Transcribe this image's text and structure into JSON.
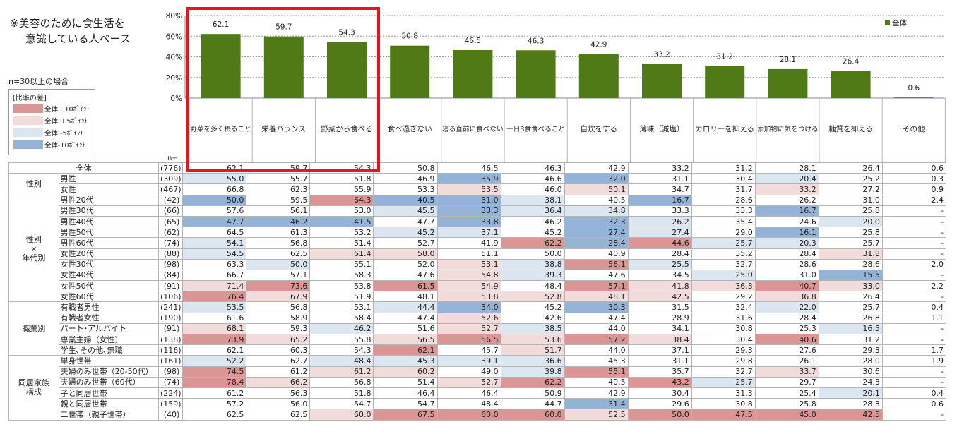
{
  "note": [
    "※美容のために食生活を",
    "意識している人ベース"
  ],
  "n_condition": "n=30以上の場合",
  "legend": {
    "title": "[比率の差]",
    "items": [
      {
        "label": "全体＋10ﾎﾟｲﾝﾄ",
        "color": "#da9694"
      },
      {
        "label": "全体 ＋5ﾎﾟｲﾝﾄ",
        "color": "#f2dcdb"
      },
      {
        "label": "全体 -5ﾎﾟｲﾝﾄ",
        "color": "#dce6f1"
      },
      {
        "label": "全体-10ﾎﾟｲﾝﾄ",
        "color": "#95b3d7"
      }
    ]
  },
  "n_label": "n=",
  "colors": {
    "bar": "#4f7a15",
    "up10": "#da9694",
    "up5": "#f2dcdb",
    "dn5": "#dce6f1",
    "dn10": "#95b3d7",
    "highlight": "#e8141b"
  },
  "chart_data": {
    "type": "bar",
    "categories": [
      "野菜を多く摂ること",
      "栄養バランス",
      "野菜から食べる",
      "食べ過ぎない",
      "寝る直前に食べない",
      "一日3食食べること",
      "自炊をする",
      "薄味（減塩）",
      "カロリーを抑える",
      "添加物に気をつける",
      "糖質を抑える",
      "その他"
    ],
    "series": [
      {
        "name": "全体",
        "values": [
          62.1,
          59.7,
          54.3,
          50.8,
          46.5,
          46.3,
          42.9,
          33.2,
          31.2,
          28.1,
          26.4,
          0.6
        ]
      }
    ],
    "yticks": [
      "80%",
      "60%",
      "40%",
      "20%",
      "0%"
    ],
    "ylim": [
      0,
      80
    ],
    "legend_position": "top-right",
    "highlighted_categories": [
      "野菜を多く摂ること",
      "栄養バランス",
      "野菜から食べる"
    ]
  },
  "table": {
    "rows": [
      {
        "group": "",
        "label": "全体",
        "n": "(776)",
        "values": [
          "62.1",
          "59.7",
          "54.3",
          "50.8",
          "46.5",
          "46.3",
          "42.9",
          "33.2",
          "31.2",
          "28.1",
          "26.4",
          "0.6"
        ]
      },
      {
        "group": "性別",
        "label": "男性",
        "n": "(309)",
        "values": [
          "55.0",
          "55.7",
          "51.8",
          "46.9",
          "35.9",
          "46.6",
          "32.0",
          "31.1",
          "30.4",
          "20.4",
          "25.2",
          "0.3"
        ]
      },
      {
        "group": "",
        "label": "女性",
        "n": "(467)",
        "values": [
          "66.8",
          "62.3",
          "55.9",
          "53.3",
          "53.5",
          "46.0",
          "50.1",
          "34.7",
          "31.7",
          "33.2",
          "27.2",
          "0.9"
        ]
      },
      {
        "group": "性別\n×\n年代別",
        "label": "男性20代",
        "n": "(42)",
        "values": [
          "50.0",
          "59.5",
          "64.3",
          "40.5",
          "31.0",
          "38.1",
          "40.5",
          "16.7",
          "28.6",
          "26.2",
          "31.0",
          "2.4"
        ]
      },
      {
        "group": "",
        "label": "男性30代",
        "n": "(66)",
        "values": [
          "57.6",
          "56.1",
          "53.0",
          "45.5",
          "33.3",
          "36.4",
          "34.8",
          "33.3",
          "33.3",
          "16.7",
          "25.8",
          "-"
        ]
      },
      {
        "group": "",
        "label": "男性40代",
        "n": "(65)",
        "values": [
          "47.7",
          "46.2",
          "41.5",
          "47.7",
          "33.8",
          "46.2",
          "32.3",
          "26.2",
          "35.4",
          "24.6",
          "20.0",
          "-"
        ]
      },
      {
        "group": "",
        "label": "男性50代",
        "n": "(62)",
        "values": [
          "64.5",
          "61.3",
          "53.2",
          "45.2",
          "37.1",
          "45.2",
          "27.4",
          "27.4",
          "29.0",
          "16.1",
          "25.8",
          "-"
        ]
      },
      {
        "group": "",
        "label": "男性60代",
        "n": "(74)",
        "values": [
          "54.1",
          "56.8",
          "51.4",
          "52.7",
          "41.9",
          "62.2",
          "28.4",
          "44.6",
          "25.7",
          "20.3",
          "25.7",
          "-"
        ]
      },
      {
        "group": "",
        "label": "女性20代",
        "n": "(88)",
        "values": [
          "54.5",
          "62.5",
          "61.4",
          "58.0",
          "51.1",
          "50.0",
          "40.9",
          "28.4",
          "35.2",
          "28.4",
          "31.8",
          "-"
        ]
      },
      {
        "group": "",
        "label": "女性30代",
        "n": "(98)",
        "values": [
          "63.3",
          "50.0",
          "55.1",
          "52.0",
          "53.1",
          "38.8",
          "56.1",
          "25.5",
          "32.7",
          "28.6",
          "28.6",
          "2.0"
        ]
      },
      {
        "group": "",
        "label": "女性40代",
        "n": "(84)",
        "values": [
          "66.7",
          "57.1",
          "58.3",
          "47.6",
          "54.8",
          "39.3",
          "47.6",
          "34.5",
          "25.0",
          "31.0",
          "15.5",
          "-"
        ]
      },
      {
        "group": "",
        "label": "女性50代",
        "n": "(91)",
        "values": [
          "71.4",
          "73.6",
          "53.8",
          "61.5",
          "54.9",
          "48.4",
          "57.1",
          "41.8",
          "36.3",
          "40.7",
          "33.0",
          "2.2"
        ]
      },
      {
        "group": "",
        "label": "女性60代",
        "n": "(106)",
        "values": [
          "76.4",
          "67.9",
          "51.9",
          "48.1",
          "53.8",
          "52.8",
          "48.1",
          "42.5",
          "29.2",
          "36.8",
          "26.4",
          "-"
        ]
      },
      {
        "group": "職業別",
        "label": "有職者男性",
        "n": "(241)",
        "values": [
          "53.5",
          "56.8",
          "53.1",
          "44.4",
          "34.0",
          "45.2",
          "30.3",
          "31.5",
          "32.4",
          "22.0",
          "25.7",
          "0.4"
        ]
      },
      {
        "group": "",
        "label": "有職者女性",
        "n": "(190)",
        "values": [
          "61.6",
          "58.9",
          "58.4",
          "47.4",
          "52.6",
          "42.6",
          "47.4",
          "28.9",
          "31.6",
          "28.4",
          "26.8",
          "1.1"
        ]
      },
      {
        "group": "",
        "label": "パート･アルバイト",
        "n": "(91)",
        "values": [
          "68.1",
          "59.3",
          "46.2",
          "51.6",
          "52.7",
          "38.5",
          "44.0",
          "34.1",
          "30.8",
          "25.3",
          "16.5",
          "-"
        ]
      },
      {
        "group": "",
        "label": "専業主婦（女性）",
        "n": "(138)",
        "values": [
          "73.9",
          "65.2",
          "55.8",
          "56.5",
          "56.5",
          "53.6",
          "57.2",
          "38.4",
          "30.4",
          "40.6",
          "31.2",
          "-"
        ]
      },
      {
        "group": "",
        "label": "学生､その他､無職",
        "n": "(116)",
        "values": [
          "62.1",
          "60.3",
          "54.3",
          "62.1",
          "45.7",
          "51.7",
          "44.0",
          "37.1",
          "29.3",
          "27.6",
          "29.3",
          "1.7"
        ]
      },
      {
        "group": "同居家族\n構成",
        "label": "単身世帯",
        "n": "(161)",
        "values": [
          "52.2",
          "62.7",
          "48.4",
          "45.3",
          "39.1",
          "36.6",
          "45.3",
          "31.1",
          "29.8",
          "26.1",
          "28.0",
          "1.9"
        ]
      },
      {
        "group": "",
        "label": "夫婦のみ世帯（20-50代）",
        "n": "(98)",
        "values": [
          "74.5",
          "61.2",
          "61.2",
          "60.2",
          "49.0",
          "39.8",
          "55.1",
          "35.7",
          "32.7",
          "33.7",
          "30.6",
          "-"
        ]
      },
      {
        "group": "",
        "label": "夫婦のみ世帯（60代）",
        "n": "(74)",
        "values": [
          "78.4",
          "66.2",
          "56.8",
          "51.4",
          "52.7",
          "62.2",
          "40.5",
          "43.2",
          "25.7",
          "29.7",
          "24.3",
          "-"
        ]
      },
      {
        "group": "",
        "label": "子と同居世帯",
        "n": "(224)",
        "values": [
          "61.2",
          "56.3",
          "51.8",
          "46.4",
          "46.4",
          "50.9",
          "42.9",
          "30.4",
          "31.3",
          "25.4",
          "20.1",
          "0.4"
        ]
      },
      {
        "group": "",
        "label": "親と同居世帯",
        "n": "(159)",
        "values": [
          "57.2",
          "56.0",
          "54.7",
          "54.7",
          "48.4",
          "44.7",
          "31.4",
          "29.6",
          "30.8",
          "25.8",
          "28.3",
          "0.6"
        ]
      },
      {
        "group": "",
        "label": "二世帯（親子世帯）",
        "n": "(40)",
        "values": [
          "62.5",
          "62.5",
          "60.0",
          "67.5",
          "60.0",
          "60.0",
          "52.5",
          "50.0",
          "47.5",
          "45.0",
          "42.5",
          "-"
        ]
      }
    ]
  }
}
